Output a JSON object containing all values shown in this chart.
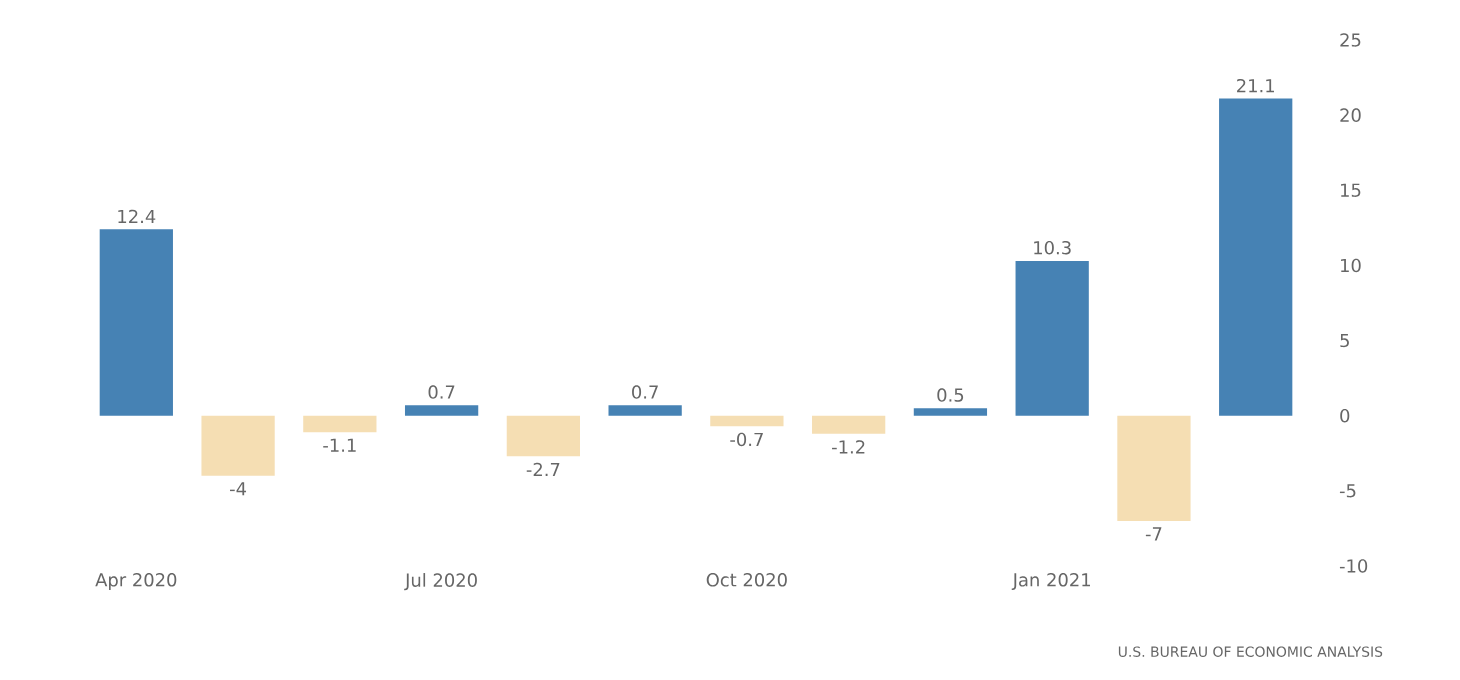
{
  "chart_data": {
    "type": "bar",
    "categories": [
      "Apr 2020",
      null,
      null,
      "Jul 2020",
      null,
      null,
      "Oct 2020",
      null,
      null,
      "Jan 2021",
      null,
      null
    ],
    "values": [
      12.4,
      -4,
      -1.1,
      0.7,
      -2.7,
      0.7,
      -0.7,
      -1.2,
      0.5,
      10.3,
      -7,
      21.1
    ],
    "value_labels": [
      "12.4",
      "-4",
      "-1.1",
      "0.7",
      "-2.7",
      "0.7",
      "-0.7",
      "-1.2",
      "0.5",
      "10.3",
      "-7",
      "21.1"
    ],
    "colors": [
      "#4682b4",
      "#f5deb3",
      "#f5deb3",
      "#4682b4",
      "#f5deb3",
      "#4682b4",
      "#f5deb3",
      "#f5deb3",
      "#4682b4",
      "#4682b4",
      "#f5deb3",
      "#4682b4"
    ],
    "ylim": [
      -10,
      25
    ],
    "yticks": [
      -10,
      -5,
      0,
      5,
      10,
      15,
      20,
      25
    ],
    "annotations": [
      "U.S. BUREAU OF ECONOMIC ANALYSIS"
    ]
  }
}
